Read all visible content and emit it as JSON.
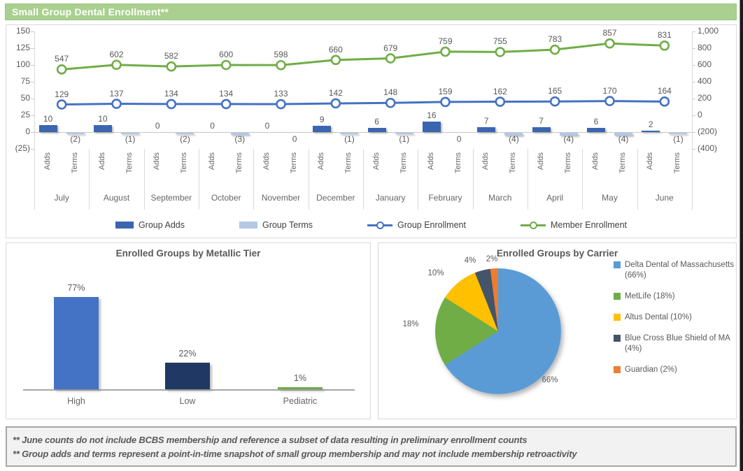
{
  "header": {
    "title": "Small Group Dental Enrollment**",
    "bg_color": "#A9D08E"
  },
  "chart_data": [
    {
      "id": "enrollment-combo",
      "type": "bar",
      "subtype": "bar+line combo",
      "categories": [
        "July",
        "August",
        "September",
        "October",
        "November",
        "December",
        "January",
        "February",
        "March",
        "April",
        "May",
        "June"
      ],
      "sub_categories": [
        "Adds",
        "Terms"
      ],
      "series": [
        {
          "name": "Group Adds",
          "type": "bar",
          "axis": "left",
          "color": "#3A66B0",
          "values": [
            10,
            10,
            0,
            0,
            0,
            9,
            6,
            16,
            7,
            7,
            6,
            2
          ],
          "labels": [
            "10",
            "10",
            "0",
            "0",
            "0",
            "9",
            "6",
            "16",
            "7",
            "7",
            "6",
            "2"
          ]
        },
        {
          "name": "Group Terms",
          "type": "bar",
          "axis": "left",
          "color": "#B4C7E7",
          "values": [
            -2,
            -1,
            -2,
            -3,
            0,
            -1,
            -1,
            0,
            -4,
            -4,
            -4,
            -1
          ],
          "labels": [
            "(2)",
            "(1)",
            "(2)",
            "(3)",
            "0",
            "(1)",
            "(1)",
            "0",
            "(4)",
            "(4)",
            "(4)",
            "(1)"
          ]
        },
        {
          "name": "Group Enrollment",
          "type": "line",
          "axis": "right",
          "color": "#4472C4",
          "values": [
            129,
            137,
            134,
            134,
            133,
            142,
            148,
            159,
            162,
            165,
            170,
            164
          ]
        },
        {
          "name": "Member Enrollment",
          "type": "line",
          "axis": "right",
          "color": "#70AD47",
          "values": [
            547,
            602,
            582,
            600,
            598,
            660,
            679,
            759,
            755,
            783,
            857,
            831
          ]
        }
      ],
      "left_axis": {
        "min": -25,
        "max": 150,
        "ticks": [
          "150",
          "125",
          "100",
          "75",
          "50",
          "25",
          "0",
          "(25)"
        ]
      },
      "right_axis": {
        "min": -400,
        "max": 1000,
        "ticks": [
          "1,000",
          "800",
          "600",
          "400",
          "200",
          "0",
          "(200)",
          "(400)"
        ]
      },
      "legend_position": "bottom",
      "grid": "zero-line-only"
    },
    {
      "id": "metallic-tier",
      "type": "bar",
      "title": "Enrolled Groups by Metallic Tier",
      "categories": [
        "High",
        "Low",
        "Pediatric"
      ],
      "values": [
        77,
        22,
        1
      ],
      "labels": [
        "77%",
        "22%",
        "1%"
      ],
      "colors": [
        "#4472C4",
        "#203864",
        "#70AD47"
      ],
      "ylim": [
        0,
        100
      ]
    },
    {
      "id": "carrier-pie",
      "type": "pie",
      "title": "Enrolled Groups by Carrier",
      "slices": [
        {
          "label": "Delta Dental of Massachusetts (66%)",
          "value": 66,
          "pct_label": "66%",
          "color": "#5B9BD5"
        },
        {
          "label": "MetLife (18%)",
          "value": 18,
          "pct_label": "18%",
          "color": "#70AD47"
        },
        {
          "label": "Altus Dental (10%)",
          "value": 10,
          "pct_label": "10%",
          "color": "#FFC000"
        },
        {
          "label": "Blue Cross Blue Shield of MA (4%)",
          "value": 4,
          "pct_label": "4%",
          "color": "#44546A"
        },
        {
          "label": "Guardian (2%)",
          "value": 2,
          "pct_label": "2%",
          "color": "#ED7D31"
        }
      ],
      "legend_position": "right"
    }
  ],
  "footnotes": [
    "** June counts do not include BCBS membership and reference a subset of data resulting in preliminary enrollment counts",
    "** Group adds and terms represent a point-in-time snapshot of small group membership and may not include membership retroactivity"
  ]
}
